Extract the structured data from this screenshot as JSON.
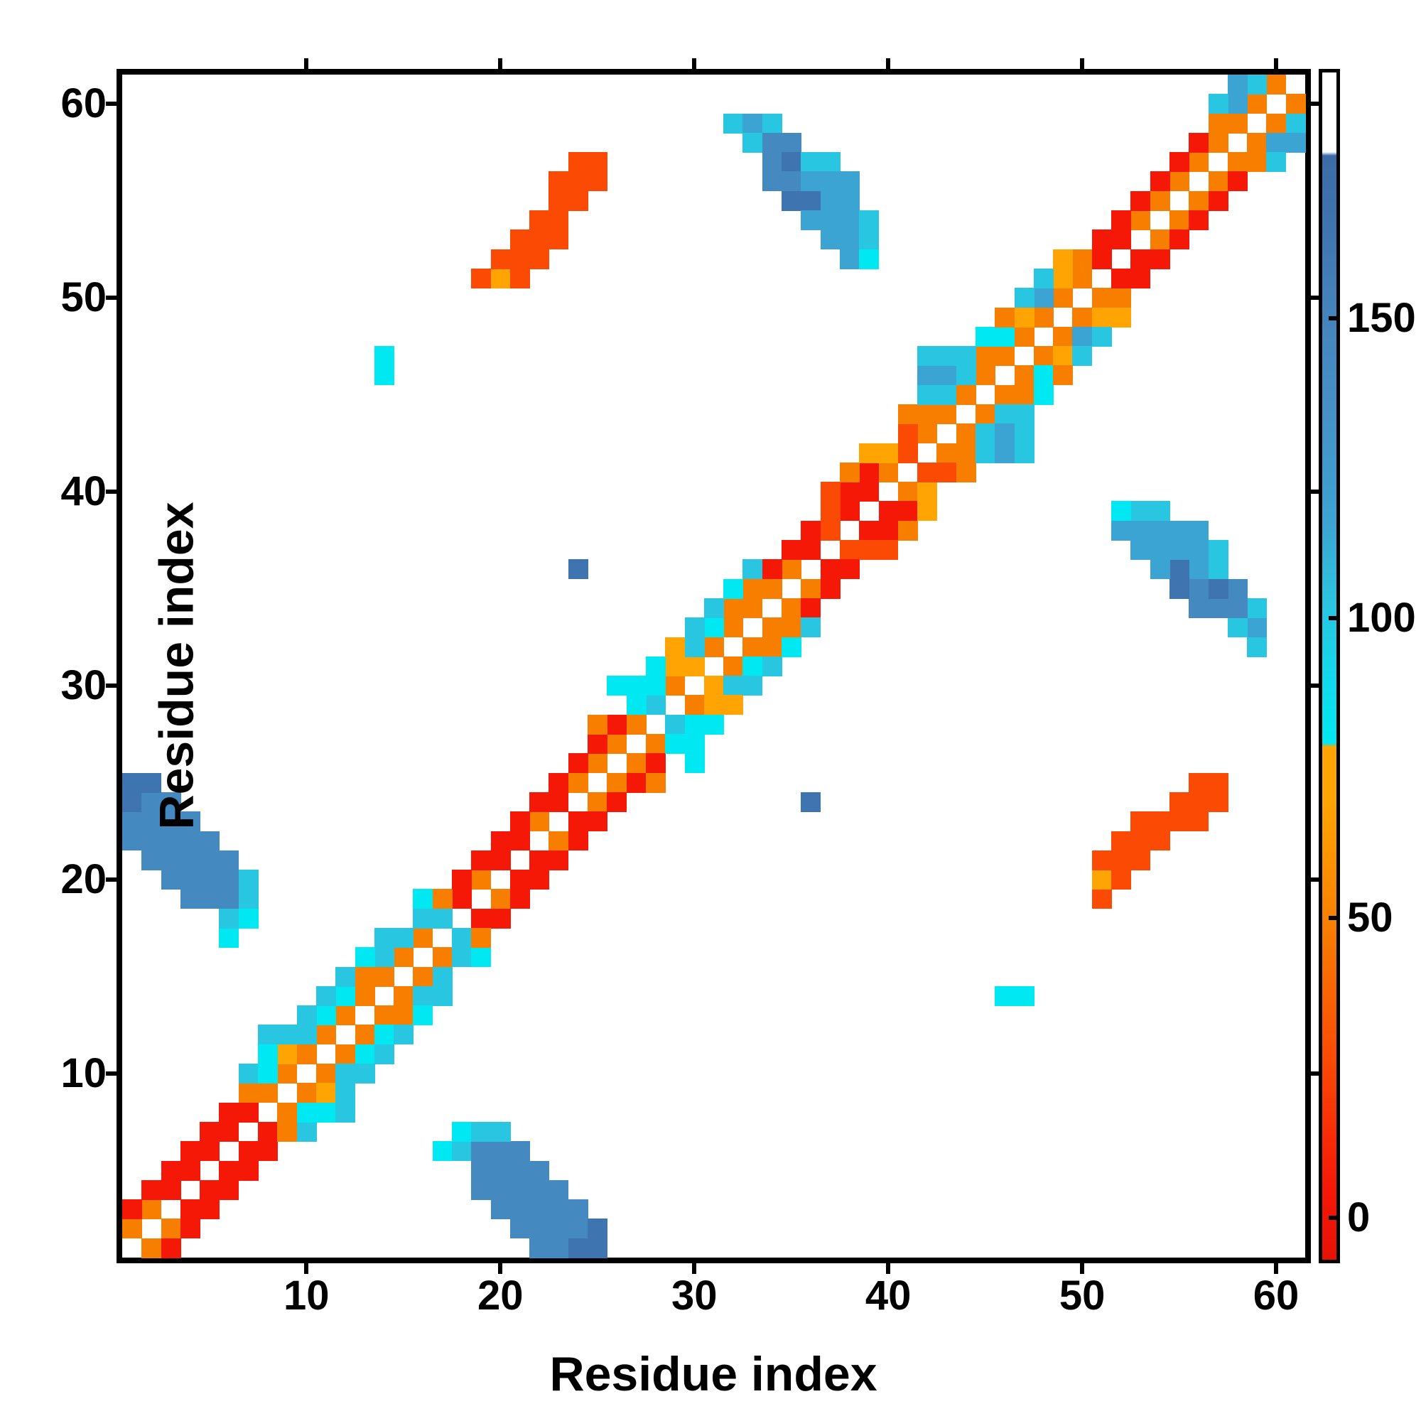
{
  "figure": {
    "background": "#FFFFFF",
    "frame_color": "#000000"
  },
  "axes": {
    "x_label": "Residue index",
    "y_label": "Residue index",
    "x_ticks": [
      10,
      20,
      30,
      40,
      50,
      60
    ],
    "y_ticks": [
      10,
      20,
      30,
      40,
      50,
      60
    ],
    "range": [
      1,
      61
    ]
  },
  "colorbar": {
    "tick_values": [
      0,
      50,
      100,
      150
    ],
    "tick_labels": [
      "0",
      "50",
      "100",
      "150"
    ],
    "value_range": [
      -7,
      191
    ],
    "stops": [
      [
        0.0,
        "#E51205"
      ],
      [
        0.06,
        "#F51807"
      ],
      [
        0.17,
        "#FB4A04"
      ],
      [
        0.28,
        "#F87E00"
      ],
      [
        0.385,
        "#FFA402"
      ],
      [
        0.432,
        "#FFA402"
      ],
      [
        0.435,
        "#00E9F2"
      ],
      [
        0.5,
        "#16D5EA"
      ],
      [
        0.55,
        "#29C6E1"
      ],
      [
        0.62,
        "#3CA4D2"
      ],
      [
        0.72,
        "#4590C7"
      ],
      [
        0.8,
        "#4583BC"
      ],
      [
        0.87,
        "#3E74AF"
      ],
      [
        0.93,
        "#3C6CA8"
      ],
      [
        0.933,
        "#FFFFFF"
      ],
      [
        1.0,
        "#FFFFFF"
      ]
    ]
  },
  "palette": {
    "R": "#F51807",
    "OR": "#FB4A04",
    "O": "#F87E00",
    "BO": "#FFA402",
    "C": "#00E9F2",
    "C2": "#29C6E1",
    "MB": "#3CA4D2",
    "SB": "#4589C1",
    "B": "#4589C1",
    "DB": "#3E74AF"
  },
  "chart_data": {
    "type": "heatmap",
    "title": "",
    "xlabel": "Residue index",
    "ylabel": "Residue index",
    "n": 61,
    "xlim": [
      1,
      61
    ],
    "ylim": [
      1,
      61
    ],
    "symmetric": true,
    "diagonal": "white (same as background)",
    "legend_position": "right colorbar",
    "value_by_color": {
      "R": 5,
      "OR": 25,
      "O": 55,
      "BO": 70,
      "C": 85,
      "C2": 100,
      "MB": 115,
      "SB": 148,
      "B": 148,
      "DB": 162
    },
    "cells": [
      [
        1,
        2,
        "O"
      ],
      [
        2,
        3,
        "O"
      ],
      [
        3,
        4,
        "R"
      ],
      [
        4,
        5,
        "R"
      ],
      [
        5,
        6,
        "R"
      ],
      [
        6,
        7,
        "R"
      ],
      [
        7,
        8,
        "R"
      ],
      [
        1,
        3,
        "R"
      ],
      [
        2,
        4,
        "R"
      ],
      [
        3,
        5,
        "R"
      ],
      [
        4,
        6,
        "R"
      ],
      [
        5,
        7,
        "R"
      ],
      [
        6,
        8,
        "R"
      ],
      [
        7,
        9,
        "O"
      ],
      [
        7,
        10,
        "C2"
      ],
      [
        8,
        9,
        "O"
      ],
      [
        9,
        10,
        "O"
      ],
      [
        10,
        11,
        "O"
      ],
      [
        11,
        12,
        "O"
      ],
      [
        12,
        13,
        "O"
      ],
      [
        13,
        14,
        "O"
      ],
      [
        14,
        15,
        "O"
      ],
      [
        15,
        16,
        "O"
      ],
      [
        16,
        17,
        "O"
      ],
      [
        8,
        10,
        "C"
      ],
      [
        9,
        11,
        "BO"
      ],
      [
        10,
        12,
        "C2"
      ],
      [
        11,
        13,
        "C"
      ],
      [
        12,
        14,
        "C"
      ],
      [
        13,
        15,
        "O"
      ],
      [
        14,
        16,
        "C2"
      ],
      [
        15,
        17,
        "C2"
      ],
      [
        8,
        11,
        "C"
      ],
      [
        9,
        12,
        "C2"
      ],
      [
        10,
        13,
        "C2"
      ],
      [
        11,
        14,
        "C2"
      ],
      [
        12,
        15,
        "C2"
      ],
      [
        13,
        16,
        "C"
      ],
      [
        14,
        17,
        "C2"
      ],
      [
        8,
        12,
        "C2"
      ],
      [
        16,
        18,
        "C2"
      ],
      [
        16,
        19,
        "C"
      ],
      [
        17,
        18,
        "C2"
      ],
      [
        18,
        19,
        "R"
      ],
      [
        19,
        20,
        "O"
      ],
      [
        20,
        21,
        "R"
      ],
      [
        21,
        22,
        "R"
      ],
      [
        22,
        23,
        "O"
      ],
      [
        23,
        24,
        "R"
      ],
      [
        24,
        25,
        "O"
      ],
      [
        25,
        26,
        "O"
      ],
      [
        26,
        27,
        "O"
      ],
      [
        27,
        28,
        "O"
      ],
      [
        17,
        19,
        "O"
      ],
      [
        18,
        20,
        "R"
      ],
      [
        19,
        21,
        "R"
      ],
      [
        20,
        22,
        "R"
      ],
      [
        21,
        23,
        "R"
      ],
      [
        22,
        24,
        "R"
      ],
      [
        23,
        25,
        "R"
      ],
      [
        24,
        26,
        "R"
      ],
      [
        25,
        27,
        "R"
      ],
      [
        26,
        28,
        "R"
      ],
      [
        25,
        28,
        "O"
      ],
      [
        28,
        29,
        "C2"
      ],
      [
        29,
        30,
        "O"
      ],
      [
        30,
        31,
        "BO"
      ],
      [
        31,
        32,
        "O"
      ],
      [
        32,
        33,
        "O"
      ],
      [
        33,
        34,
        "O"
      ],
      [
        34,
        35,
        "O"
      ],
      [
        35,
        36,
        "O"
      ],
      [
        27,
        29,
        "C"
      ],
      [
        28,
        30,
        "C"
      ],
      [
        29,
        31,
        "BO"
      ],
      [
        30,
        32,
        "C2"
      ],
      [
        31,
        33,
        "C"
      ],
      [
        32,
        34,
        "O"
      ],
      [
        33,
        35,
        "O"
      ],
      [
        34,
        36,
        "R"
      ],
      [
        26,
        30,
        "C"
      ],
      [
        27,
        30,
        "C"
      ],
      [
        28,
        31,
        "C"
      ],
      [
        29,
        32,
        "BO"
      ],
      [
        30,
        33,
        "C2"
      ],
      [
        31,
        34,
        "C2"
      ],
      [
        32,
        35,
        "C"
      ],
      [
        33,
        36,
        "C2"
      ],
      [
        36,
        37,
        "R"
      ],
      [
        37,
        38,
        "OR"
      ],
      [
        38,
        39,
        "R"
      ],
      [
        39,
        40,
        "R"
      ],
      [
        40,
        41,
        "O"
      ],
      [
        35,
        37,
        "R"
      ],
      [
        36,
        38,
        "R"
      ],
      [
        37,
        39,
        "OR"
      ],
      [
        38,
        40,
        "R"
      ],
      [
        39,
        41,
        "R"
      ],
      [
        37,
        40,
        "OR"
      ],
      [
        38,
        41,
        "O"
      ],
      [
        39,
        42,
        "BO"
      ],
      [
        40,
        42,
        "BO"
      ],
      [
        41,
        42,
        "OR"
      ],
      [
        42,
        43,
        "O"
      ],
      [
        43,
        44,
        "O"
      ],
      [
        44,
        45,
        "O"
      ],
      [
        45,
        46,
        "O"
      ],
      [
        46,
        47,
        "O"
      ],
      [
        47,
        48,
        "O"
      ],
      [
        48,
        49,
        "O"
      ],
      [
        49,
        50,
        "O"
      ],
      [
        50,
        51,
        "O"
      ],
      [
        41,
        43,
        "OR"
      ],
      [
        42,
        44,
        "O"
      ],
      [
        43,
        45,
        "C2"
      ],
      [
        44,
        46,
        "C2"
      ],
      [
        45,
        47,
        "O"
      ],
      [
        46,
        48,
        "C"
      ],
      [
        47,
        49,
        "BO"
      ],
      [
        48,
        50,
        "MB"
      ],
      [
        49,
        51,
        "BO"
      ],
      [
        50,
        52,
        "O"
      ],
      [
        41,
        44,
        "O"
      ],
      [
        42,
        45,
        "C2"
      ],
      [
        43,
        46,
        "MB"
      ],
      [
        44,
        47,
        "C2"
      ],
      [
        45,
        48,
        "C"
      ],
      [
        46,
        49,
        "O"
      ],
      [
        47,
        50,
        "C2"
      ],
      [
        48,
        51,
        "C2"
      ],
      [
        49,
        52,
        "BO"
      ],
      [
        42,
        46,
        "MB"
      ],
      [
        43,
        47,
        "C2"
      ],
      [
        42,
        47,
        "C2"
      ],
      [
        51,
        52,
        "R"
      ],
      [
        52,
        53,
        "R"
      ],
      [
        53,
        54,
        "O"
      ],
      [
        54,
        55,
        "O"
      ],
      [
        55,
        56,
        "O"
      ],
      [
        56,
        57,
        "O"
      ],
      [
        57,
        58,
        "O"
      ],
      [
        58,
        59,
        "O"
      ],
      [
        59,
        60,
        "O"
      ],
      [
        60,
        61,
        "O"
      ],
      [
        51,
        53,
        "R"
      ],
      [
        52,
        54,
        "R"
      ],
      [
        53,
        55,
        "R"
      ],
      [
        54,
        56,
        "R"
      ],
      [
        55,
        57,
        "R"
      ],
      [
        56,
        58,
        "R"
      ],
      [
        57,
        59,
        "O"
      ],
      [
        58,
        60,
        "MB"
      ],
      [
        59,
        61,
        "C2"
      ],
      [
        57,
        60,
        "C2"
      ],
      [
        58,
        61,
        "MB"
      ],
      [
        1,
        22,
        "B"
      ],
      [
        1,
        23,
        "B"
      ],
      [
        1,
        24,
        "DB"
      ],
      [
        1,
        25,
        "DB"
      ],
      [
        2,
        21,
        "B"
      ],
      [
        2,
        22,
        "B"
      ],
      [
        2,
        23,
        "B"
      ],
      [
        2,
        24,
        "B"
      ],
      [
        2,
        25,
        "DB"
      ],
      [
        3,
        20,
        "B"
      ],
      [
        3,
        21,
        "B"
      ],
      [
        3,
        22,
        "B"
      ],
      [
        3,
        23,
        "B"
      ],
      [
        3,
        24,
        "B"
      ],
      [
        4,
        19,
        "B"
      ],
      [
        4,
        20,
        "B"
      ],
      [
        4,
        21,
        "B"
      ],
      [
        4,
        22,
        "B"
      ],
      [
        4,
        23,
        "B"
      ],
      [
        5,
        19,
        "B"
      ],
      [
        5,
        20,
        "B"
      ],
      [
        5,
        21,
        "B"
      ],
      [
        5,
        22,
        "B"
      ],
      [
        6,
        17,
        "C"
      ],
      [
        6,
        18,
        "C2"
      ],
      [
        6,
        19,
        "B"
      ],
      [
        6,
        20,
        "B"
      ],
      [
        6,
        21,
        "B"
      ],
      [
        7,
        18,
        "C"
      ],
      [
        7,
        19,
        "C2"
      ],
      [
        7,
        20,
        "C2"
      ],
      [
        32,
        59,
        "C2"
      ],
      [
        33,
        59,
        "MB"
      ],
      [
        34,
        59,
        "C2"
      ],
      [
        33,
        58,
        "C2"
      ],
      [
        34,
        58,
        "SB"
      ],
      [
        35,
        58,
        "SB"
      ],
      [
        34,
        57,
        "SB"
      ],
      [
        35,
        57,
        "DB"
      ],
      [
        36,
        57,
        "C2"
      ],
      [
        37,
        57,
        "C2"
      ],
      [
        34,
        56,
        "SB"
      ],
      [
        35,
        56,
        "SB"
      ],
      [
        36,
        56,
        "MB"
      ],
      [
        37,
        56,
        "MB"
      ],
      [
        38,
        56,
        "MB"
      ],
      [
        35,
        55,
        "DB"
      ],
      [
        36,
        55,
        "DB"
      ],
      [
        37,
        55,
        "MB"
      ],
      [
        38,
        55,
        "MB"
      ],
      [
        36,
        54,
        "MB"
      ],
      [
        37,
        54,
        "MB"
      ],
      [
        38,
        54,
        "MB"
      ],
      [
        39,
        54,
        "C2"
      ],
      [
        37,
        53,
        "MB"
      ],
      [
        38,
        53,
        "MB"
      ],
      [
        39,
        53,
        "C2"
      ],
      [
        38,
        52,
        "MB"
      ],
      [
        39,
        52,
        "C"
      ],
      [
        19,
        51,
        "OR"
      ],
      [
        20,
        51,
        "BO"
      ],
      [
        21,
        51,
        "OR"
      ],
      [
        20,
        52,
        "OR"
      ],
      [
        21,
        52,
        "OR"
      ],
      [
        22,
        52,
        "OR"
      ],
      [
        21,
        53,
        "OR"
      ],
      [
        22,
        53,
        "OR"
      ],
      [
        23,
        53,
        "OR"
      ],
      [
        22,
        54,
        "OR"
      ],
      [
        23,
        54,
        "OR"
      ],
      [
        23,
        55,
        "OR"
      ],
      [
        24,
        55,
        "OR"
      ],
      [
        23,
        56,
        "OR"
      ],
      [
        24,
        56,
        "OR"
      ],
      [
        25,
        56,
        "OR"
      ],
      [
        24,
        57,
        "OR"
      ],
      [
        25,
        57,
        "OR"
      ],
      [
        14,
        46,
        "C"
      ],
      [
        14,
        47,
        "C"
      ],
      [
        24,
        36,
        "DB"
      ]
    ]
  }
}
